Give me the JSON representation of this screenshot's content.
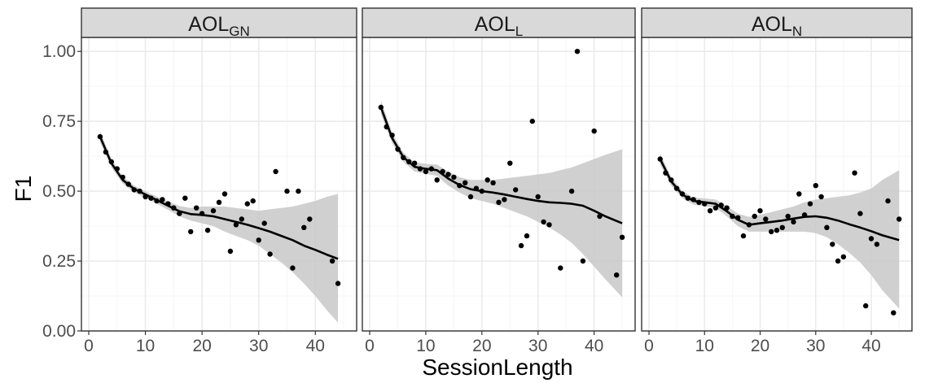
{
  "chart_data": {
    "type": "scatter",
    "xlabel": "SessionLength",
    "ylabel": "F1",
    "xlim": [
      0,
      46
    ],
    "ylim": [
      0,
      1.05
    ],
    "x_ticks": [
      0,
      10,
      20,
      30,
      40
    ],
    "y_ticks": [
      0.0,
      0.25,
      0.5,
      0.75,
      1.0
    ],
    "y_tick_labels": [
      "0.00",
      "0.25",
      "0.50",
      "0.75",
      "1.00"
    ],
    "grid": true,
    "colors": {
      "strip_bg": "#d9d9d9",
      "panel_border": "#333333",
      "grid_major": "#ebebeb",
      "ribbon": "#c8c8c8",
      "line": "#000000",
      "point": "#000000"
    },
    "facets": [
      {
        "label": "AOL",
        "label_sub": "GN",
        "points": [
          {
            "x": 2,
            "y": 0.695
          },
          {
            "x": 3,
            "y": 0.64
          },
          {
            "x": 4,
            "y": 0.605
          },
          {
            "x": 5,
            "y": 0.58
          },
          {
            "x": 6,
            "y": 0.55
          },
          {
            "x": 7,
            "y": 0.525
          },
          {
            "x": 8,
            "y": 0.505
          },
          {
            "x": 9,
            "y": 0.5
          },
          {
            "x": 10,
            "y": 0.48
          },
          {
            "x": 11,
            "y": 0.475
          },
          {
            "x": 12,
            "y": 0.465
          },
          {
            "x": 13,
            "y": 0.47
          },
          {
            "x": 14,
            "y": 0.455
          },
          {
            "x": 15,
            "y": 0.44
          },
          {
            "x": 16,
            "y": 0.42
          },
          {
            "x": 17,
            "y": 0.475
          },
          {
            "x": 18,
            "y": 0.355
          },
          {
            "x": 19,
            "y": 0.44
          },
          {
            "x": 20,
            "y": 0.42
          },
          {
            "x": 21,
            "y": 0.36
          },
          {
            "x": 22,
            "y": 0.43
          },
          {
            "x": 23,
            "y": 0.46
          },
          {
            "x": 24,
            "y": 0.49
          },
          {
            "x": 25,
            "y": 0.285
          },
          {
            "x": 26,
            "y": 0.38
          },
          {
            "x": 27,
            "y": 0.4
          },
          {
            "x": 28,
            "y": 0.455
          },
          {
            "x": 29,
            "y": 0.465
          },
          {
            "x": 30,
            "y": 0.325
          },
          {
            "x": 31,
            "y": 0.385
          },
          {
            "x": 32,
            "y": 0.275
          },
          {
            "x": 33,
            "y": 0.57
          },
          {
            "x": 35,
            "y": 0.5
          },
          {
            "x": 36,
            "y": 0.225
          },
          {
            "x": 37,
            "y": 0.5
          },
          {
            "x": 38,
            "y": 0.37
          },
          {
            "x": 39,
            "y": 0.4
          },
          {
            "x": 43,
            "y": 0.25
          },
          {
            "x": 44,
            "y": 0.17
          }
        ],
        "smooth": [
          {
            "x": 2,
            "y": 0.695,
            "lo": 0.675,
            "hi": 0.715
          },
          {
            "x": 4,
            "y": 0.6,
            "lo": 0.585,
            "hi": 0.615
          },
          {
            "x": 6,
            "y": 0.54,
            "lo": 0.527,
            "hi": 0.553
          },
          {
            "x": 8,
            "y": 0.508,
            "lo": 0.496,
            "hi": 0.52
          },
          {
            "x": 10,
            "y": 0.488,
            "lo": 0.476,
            "hi": 0.5
          },
          {
            "x": 12,
            "y": 0.468,
            "lo": 0.455,
            "hi": 0.481
          },
          {
            "x": 14,
            "y": 0.448,
            "lo": 0.433,
            "hi": 0.463
          },
          {
            "x": 16,
            "y": 0.428,
            "lo": 0.41,
            "hi": 0.447
          },
          {
            "x": 18,
            "y": 0.418,
            "lo": 0.395,
            "hi": 0.44
          },
          {
            "x": 20,
            "y": 0.415,
            "lo": 0.385,
            "hi": 0.445
          },
          {
            "x": 22,
            "y": 0.41,
            "lo": 0.375,
            "hi": 0.445
          },
          {
            "x": 24,
            "y": 0.4,
            "lo": 0.355,
            "hi": 0.445
          },
          {
            "x": 26,
            "y": 0.39,
            "lo": 0.34,
            "hi": 0.44
          },
          {
            "x": 28,
            "y": 0.38,
            "lo": 0.325,
            "hi": 0.435
          },
          {
            "x": 30,
            "y": 0.368,
            "lo": 0.305,
            "hi": 0.43
          },
          {
            "x": 32,
            "y": 0.355,
            "lo": 0.275,
            "hi": 0.435
          },
          {
            "x": 34,
            "y": 0.34,
            "lo": 0.245,
            "hi": 0.44
          },
          {
            "x": 36,
            "y": 0.325,
            "lo": 0.21,
            "hi": 0.445
          },
          {
            "x": 38,
            "y": 0.305,
            "lo": 0.17,
            "hi": 0.455
          },
          {
            "x": 40,
            "y": 0.29,
            "lo": 0.125,
            "hi": 0.465
          },
          {
            "x": 42,
            "y": 0.273,
            "lo": 0.075,
            "hi": 0.48
          },
          {
            "x": 44,
            "y": 0.258,
            "lo": 0.03,
            "hi": 0.49
          }
        ]
      },
      {
        "label": "AOL",
        "label_sub": "L",
        "points": [
          {
            "x": 2,
            "y": 0.8
          },
          {
            "x": 3,
            "y": 0.73
          },
          {
            "x": 4,
            "y": 0.7
          },
          {
            "x": 5,
            "y": 0.65
          },
          {
            "x": 6,
            "y": 0.62
          },
          {
            "x": 7,
            "y": 0.605
          },
          {
            "x": 8,
            "y": 0.6
          },
          {
            "x": 9,
            "y": 0.58
          },
          {
            "x": 10,
            "y": 0.57
          },
          {
            "x": 11,
            "y": 0.58
          },
          {
            "x": 12,
            "y": 0.54
          },
          {
            "x": 13,
            "y": 0.57
          },
          {
            "x": 14,
            "y": 0.56
          },
          {
            "x": 15,
            "y": 0.55
          },
          {
            "x": 16,
            "y": 0.52
          },
          {
            "x": 17,
            "y": 0.53
          },
          {
            "x": 18,
            "y": 0.48
          },
          {
            "x": 19,
            "y": 0.51
          },
          {
            "x": 20,
            "y": 0.5
          },
          {
            "x": 21,
            "y": 0.54
          },
          {
            "x": 22,
            "y": 0.53
          },
          {
            "x": 23,
            "y": 0.46
          },
          {
            "x": 24,
            "y": 0.47
          },
          {
            "x": 25,
            "y": 0.6
          },
          {
            "x": 26,
            "y": 0.505
          },
          {
            "x": 27,
            "y": 0.305
          },
          {
            "x": 28,
            "y": 0.34
          },
          {
            "x": 29,
            "y": 0.75
          },
          {
            "x": 30,
            "y": 0.48
          },
          {
            "x": 31,
            "y": 0.39
          },
          {
            "x": 32,
            "y": 0.38
          },
          {
            "x": 34,
            "y": 0.225
          },
          {
            "x": 36,
            "y": 0.5
          },
          {
            "x": 37,
            "y": 1.0
          },
          {
            "x": 38,
            "y": 0.25
          },
          {
            "x": 40,
            "y": 0.715
          },
          {
            "x": 41,
            "y": 0.41
          },
          {
            "x": 44,
            "y": 0.2
          },
          {
            "x": 45,
            "y": 0.335
          }
        ],
        "smooth": [
          {
            "x": 2,
            "y": 0.8,
            "lo": 0.775,
            "hi": 0.825
          },
          {
            "x": 4,
            "y": 0.69,
            "lo": 0.672,
            "hi": 0.708
          },
          {
            "x": 6,
            "y": 0.622,
            "lo": 0.605,
            "hi": 0.638
          },
          {
            "x": 8,
            "y": 0.587,
            "lo": 0.57,
            "hi": 0.603
          },
          {
            "x": 10,
            "y": 0.58,
            "lo": 0.562,
            "hi": 0.598
          },
          {
            "x": 12,
            "y": 0.575,
            "lo": 0.555,
            "hi": 0.595
          },
          {
            "x": 14,
            "y": 0.545,
            "lo": 0.52,
            "hi": 0.57
          },
          {
            "x": 16,
            "y": 0.522,
            "lo": 0.495,
            "hi": 0.55
          },
          {
            "x": 18,
            "y": 0.507,
            "lo": 0.475,
            "hi": 0.54
          },
          {
            "x": 20,
            "y": 0.5,
            "lo": 0.465,
            "hi": 0.54
          },
          {
            "x": 22,
            "y": 0.495,
            "lo": 0.455,
            "hi": 0.54
          },
          {
            "x": 24,
            "y": 0.488,
            "lo": 0.44,
            "hi": 0.545
          },
          {
            "x": 26,
            "y": 0.48,
            "lo": 0.425,
            "hi": 0.55
          },
          {
            "x": 28,
            "y": 0.472,
            "lo": 0.41,
            "hi": 0.555
          },
          {
            "x": 30,
            "y": 0.465,
            "lo": 0.39,
            "hi": 0.56
          },
          {
            "x": 32,
            "y": 0.46,
            "lo": 0.37,
            "hi": 0.565
          },
          {
            "x": 34,
            "y": 0.458,
            "lo": 0.345,
            "hi": 0.575
          },
          {
            "x": 36,
            "y": 0.455,
            "lo": 0.315,
            "hi": 0.585
          },
          {
            "x": 38,
            "y": 0.448,
            "lo": 0.275,
            "hi": 0.6
          },
          {
            "x": 40,
            "y": 0.43,
            "lo": 0.23,
            "hi": 0.615
          },
          {
            "x": 42,
            "y": 0.41,
            "lo": 0.185,
            "hi": 0.63
          },
          {
            "x": 45,
            "y": 0.385,
            "lo": 0.12,
            "hi": 0.65
          }
        ]
      },
      {
        "label": "AOL",
        "label_sub": "N",
        "points": [
          {
            "x": 2,
            "y": 0.615
          },
          {
            "x": 3,
            "y": 0.565
          },
          {
            "x": 4,
            "y": 0.54
          },
          {
            "x": 5,
            "y": 0.51
          },
          {
            "x": 6,
            "y": 0.49
          },
          {
            "x": 7,
            "y": 0.475
          },
          {
            "x": 8,
            "y": 0.47
          },
          {
            "x": 9,
            "y": 0.46
          },
          {
            "x": 10,
            "y": 0.455
          },
          {
            "x": 11,
            "y": 0.43
          },
          {
            "x": 12,
            "y": 0.44
          },
          {
            "x": 13,
            "y": 0.45
          },
          {
            "x": 14,
            "y": 0.44
          },
          {
            "x": 15,
            "y": 0.41
          },
          {
            "x": 16,
            "y": 0.405
          },
          {
            "x": 17,
            "y": 0.34
          },
          {
            "x": 18,
            "y": 0.38
          },
          {
            "x": 19,
            "y": 0.41
          },
          {
            "x": 20,
            "y": 0.43
          },
          {
            "x": 21,
            "y": 0.4
          },
          {
            "x": 22,
            "y": 0.355
          },
          {
            "x": 23,
            "y": 0.36
          },
          {
            "x": 24,
            "y": 0.37
          },
          {
            "x": 25,
            "y": 0.41
          },
          {
            "x": 26,
            "y": 0.39
          },
          {
            "x": 27,
            "y": 0.49
          },
          {
            "x": 28,
            "y": 0.415
          },
          {
            "x": 29,
            "y": 0.455
          },
          {
            "x": 30,
            "y": 0.52
          },
          {
            "x": 31,
            "y": 0.48
          },
          {
            "x": 32,
            "y": 0.37
          },
          {
            "x": 33,
            "y": 0.31
          },
          {
            "x": 34,
            "y": 0.25
          },
          {
            "x": 35,
            "y": 0.265
          },
          {
            "x": 37,
            "y": 0.565
          },
          {
            "x": 38,
            "y": 0.42
          },
          {
            "x": 39,
            "y": 0.09
          },
          {
            "x": 40,
            "y": 0.33
          },
          {
            "x": 41,
            "y": 0.31
          },
          {
            "x": 43,
            "y": 0.465
          },
          {
            "x": 44,
            "y": 0.065
          },
          {
            "x": 45,
            "y": 0.4
          }
        ],
        "smooth": [
          {
            "x": 2,
            "y": 0.615,
            "lo": 0.595,
            "hi": 0.635
          },
          {
            "x": 4,
            "y": 0.535,
            "lo": 0.52,
            "hi": 0.55
          },
          {
            "x": 6,
            "y": 0.488,
            "lo": 0.475,
            "hi": 0.501
          },
          {
            "x": 8,
            "y": 0.465,
            "lo": 0.452,
            "hi": 0.478
          },
          {
            "x": 10,
            "y": 0.46,
            "lo": 0.446,
            "hi": 0.474
          },
          {
            "x": 12,
            "y": 0.455,
            "lo": 0.44,
            "hi": 0.47
          },
          {
            "x": 14,
            "y": 0.428,
            "lo": 0.41,
            "hi": 0.447
          },
          {
            "x": 16,
            "y": 0.398,
            "lo": 0.375,
            "hi": 0.42
          },
          {
            "x": 18,
            "y": 0.38,
            "lo": 0.355,
            "hi": 0.408
          },
          {
            "x": 20,
            "y": 0.385,
            "lo": 0.355,
            "hi": 0.415
          },
          {
            "x": 22,
            "y": 0.39,
            "lo": 0.355,
            "hi": 0.425
          },
          {
            "x": 24,
            "y": 0.395,
            "lo": 0.355,
            "hi": 0.435
          },
          {
            "x": 26,
            "y": 0.402,
            "lo": 0.355,
            "hi": 0.445
          },
          {
            "x": 28,
            "y": 0.408,
            "lo": 0.355,
            "hi": 0.46
          },
          {
            "x": 30,
            "y": 0.41,
            "lo": 0.35,
            "hi": 0.47
          },
          {
            "x": 32,
            "y": 0.405,
            "lo": 0.335,
            "hi": 0.475
          },
          {
            "x": 34,
            "y": 0.395,
            "lo": 0.31,
            "hi": 0.48
          },
          {
            "x": 36,
            "y": 0.382,
            "lo": 0.28,
            "hi": 0.485
          },
          {
            "x": 38,
            "y": 0.37,
            "lo": 0.245,
            "hi": 0.495
          },
          {
            "x": 40,
            "y": 0.357,
            "lo": 0.2,
            "hi": 0.51
          },
          {
            "x": 42,
            "y": 0.342,
            "lo": 0.145,
            "hi": 0.54
          },
          {
            "x": 45,
            "y": 0.325,
            "lo": 0.08,
            "hi": 0.575
          }
        ]
      }
    ]
  }
}
